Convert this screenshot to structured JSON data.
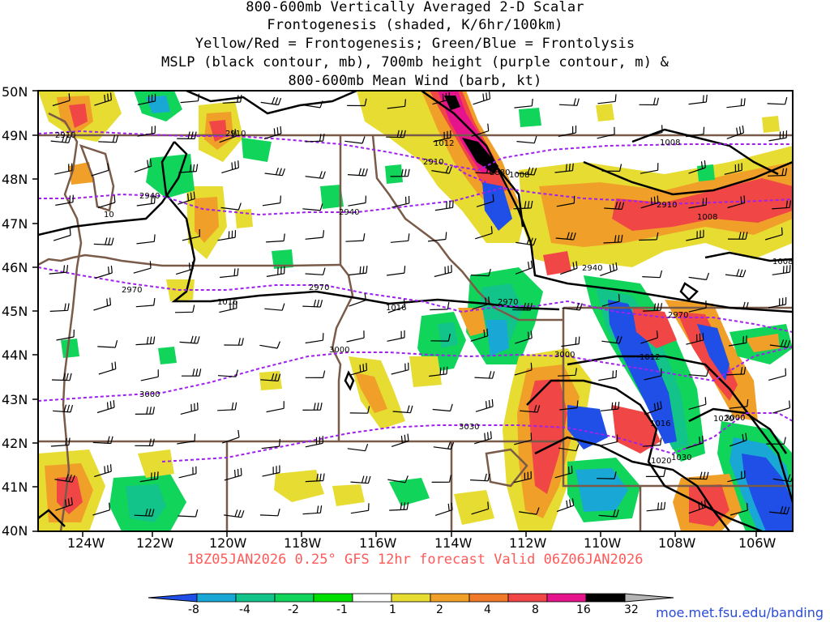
{
  "title_lines": [
    "800-600mb Vertically Averaged 2-D Scalar",
    "Frontogenesis (shaded, K/6hr/100km)",
    "Yellow/Red = Frontogenesis;  Green/Blue = Frontolysis",
    "MSLP (black contour, mb), 700mb height (purple contour, m) &",
    "800-600mb Mean Wind (barb, kt)"
  ],
  "lat_labels": [
    "50N",
    "49N",
    "48N",
    "47N",
    "46N",
    "45N",
    "44N",
    "43N",
    "42N",
    "41N",
    "40N"
  ],
  "lon_labels": [
    "124W",
    "122W",
    "120W",
    "118W",
    "116W",
    "114W",
    "112W",
    "110W",
    "108W",
    "106W"
  ],
  "footer": "18Z05JAN2026 0.25° GFS 12hr forecast Valid 06Z06JAN2026",
  "credit": "moe.met.fsu.edu/banding",
  "colorbar": {
    "labels": [
      "-8",
      "-4",
      "-2",
      "-1",
      "1",
      "2",
      "4",
      "8",
      "16",
      "32"
    ],
    "colors": [
      "#1f4fe6",
      "#19a8d6",
      "#12c48a",
      "#11d45a",
      "#00e000",
      "#ffffff",
      "#e6dc32",
      "#f0a028",
      "#f07a28",
      "#f04646",
      "#e6148c",
      "#000000",
      "#b4b4b4"
    ]
  },
  "contour_labels": {
    "mslp": [
      "1012",
      "1008",
      "1008",
      "1008",
      "1016",
      "1016",
      "1012",
      "1016",
      "1020",
      "1020",
      "1030",
      "1008",
      "10"
    ],
    "height": [
      "2910",
      "2910",
      "2910",
      "2940",
      "2940",
      "2910",
      "2880",
      "2940",
      "2970",
      "2970",
      "2970",
      "2970",
      "3000",
      "3000",
      "3000",
      "3030",
      "3000"
    ]
  }
}
